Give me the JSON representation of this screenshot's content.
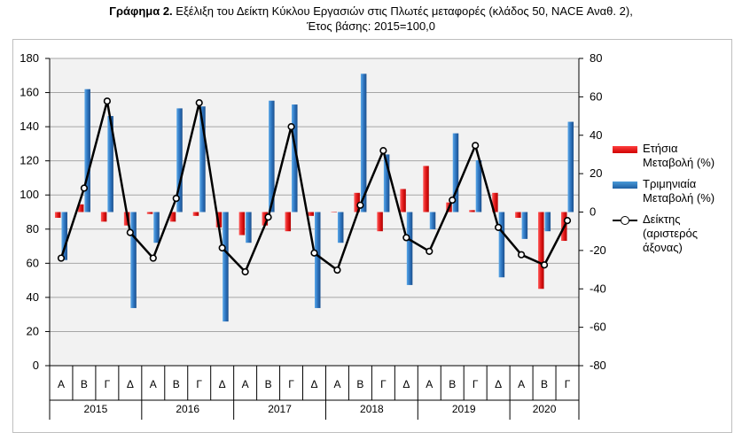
{
  "title": {
    "bold": "Γράφημα 2.",
    "text": "Εξέλιξη του Δείκτη Κύκλου Εργασιών στις Πλωτές μεταφορές (κλάδος 50, NACE Αναθ. 2),",
    "line2": "Έτος βάσης: 2015=100,0"
  },
  "legend": {
    "annual": "Ετήσια Μεταβολή (%)",
    "quarterly": "Τριμηνιαία Μεταβολή (%)",
    "index": "Δείκτης (αριστερός άξονας)"
  },
  "chart_data": {
    "type": "bar",
    "left_axis": {
      "min": 0,
      "max": 180,
      "step": 20,
      "ticks": [
        "0",
        "20",
        "40",
        "60",
        "80",
        "100",
        "120",
        "140",
        "160",
        "180"
      ]
    },
    "right_axis": {
      "min": -80,
      "max": 80,
      "step": 20,
      "ticks": [
        "-80",
        "-60",
        "-40",
        "-20",
        "0",
        "20",
        "40",
        "60",
        "80"
      ]
    },
    "categories": [
      "Α",
      "Β",
      "Γ",
      "Δ",
      "Α",
      "Β",
      "Γ",
      "Δ",
      "Α",
      "Β",
      "Γ",
      "Δ",
      "Α",
      "Β",
      "Γ",
      "Δ",
      "Α",
      "Β",
      "Γ",
      "Δ",
      "Α",
      "Β",
      "Γ"
    ],
    "years": [
      "2015",
      "2016",
      "2017",
      "2018",
      "2019",
      "2020"
    ],
    "year_quarters": [
      4,
      4,
      4,
      4,
      4,
      3
    ],
    "series": [
      {
        "name": "Ετήσια Μεταβολή (%)",
        "axis": "right",
        "kind": "bar",
        "color": "#e02020",
        "values": [
          -3,
          4,
          -5,
          -7,
          -1,
          -5,
          -2,
          -8,
          -12,
          -7,
          -10,
          -2,
          0,
          10,
          -10,
          12,
          24,
          5,
          1,
          10,
          -3,
          -40,
          -15
        ]
      },
      {
        "name": "Τριμηνιαία Μεταβολή (%)",
        "axis": "right",
        "kind": "bar",
        "color": "#2e75c0",
        "values": [
          -25,
          64,
          50,
          -50,
          -16,
          54,
          55,
          -57,
          -16,
          58,
          56,
          -50,
          -16,
          72,
          30,
          -38,
          -9,
          41,
          27,
          -34,
          -14,
          -10,
          47
        ]
      },
      {
        "name": "Δείκτης (αριστερός άξονας)",
        "axis": "left",
        "kind": "line",
        "color": "#000000",
        "values": [
          63,
          104,
          155,
          78,
          63,
          98,
          154,
          69,
          55,
          87,
          140,
          66,
          56,
          94,
          126,
          75,
          67,
          97,
          129,
          81,
          65,
          59,
          85
        ]
      }
    ]
  }
}
